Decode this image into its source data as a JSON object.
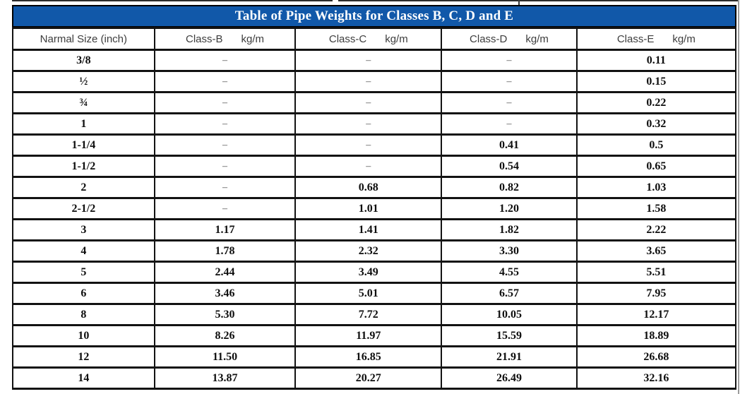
{
  "page": {
    "background_color": "#ffffff",
    "page_edge_color": "#9b9b9b"
  },
  "table": {
    "title": "Table of Pipe Weights for Classes B, C, D and E",
    "title_bar_color": "#1158a9",
    "title_text_color": "#ffffff",
    "border_color": "#121212",
    "header_text_color": "#3d3d3d",
    "empty_marker": "–",
    "columns": [
      {
        "label": "Narmal Size (inch)",
        "unit": ""
      },
      {
        "label": "Class-B",
        "unit": "kg/m"
      },
      {
        "label": "Class-C",
        "unit": "kg/m"
      },
      {
        "label": "Class-D",
        "unit": "kg/m"
      },
      {
        "label": "Class-E",
        "unit": "kg/m"
      }
    ],
    "rows": [
      [
        "3/8",
        "–",
        "–",
        "–",
        "0.11"
      ],
      [
        "½",
        "–",
        "–",
        "–",
        "0.15"
      ],
      [
        "¾",
        "–",
        "–",
        "–",
        "0.22"
      ],
      [
        "1",
        "–",
        "–",
        "–",
        "0.32"
      ],
      [
        "1-1/4",
        "–",
        "–",
        "0.41",
        "0.5"
      ],
      [
        "1-1/2",
        "–",
        "–",
        "0.54",
        "0.65"
      ],
      [
        "2",
        "–",
        "0.68",
        "0.82",
        "1.03"
      ],
      [
        "2-1/2",
        "–",
        "1.01",
        "1.20",
        "1.58"
      ],
      [
        "3",
        "1.17",
        "1.41",
        "1.82",
        "2.22"
      ],
      [
        "4",
        "1.78",
        "2.32",
        "3.30",
        "3.65"
      ],
      [
        "5",
        "2.44",
        "3.49",
        "4.55",
        "5.51"
      ],
      [
        "6",
        "3.46",
        "5.01",
        "6.57",
        "7.95"
      ],
      [
        "8",
        "5.30",
        "7.72",
        "10.05",
        "12.17"
      ],
      [
        "10",
        "8.26",
        "11.97",
        "15.59",
        "18.89"
      ],
      [
        "12",
        "11.50",
        "16.85",
        "21.91",
        "26.68"
      ],
      [
        "14",
        "13.87",
        "20.27",
        "26.49",
        "32.16"
      ]
    ]
  }
}
